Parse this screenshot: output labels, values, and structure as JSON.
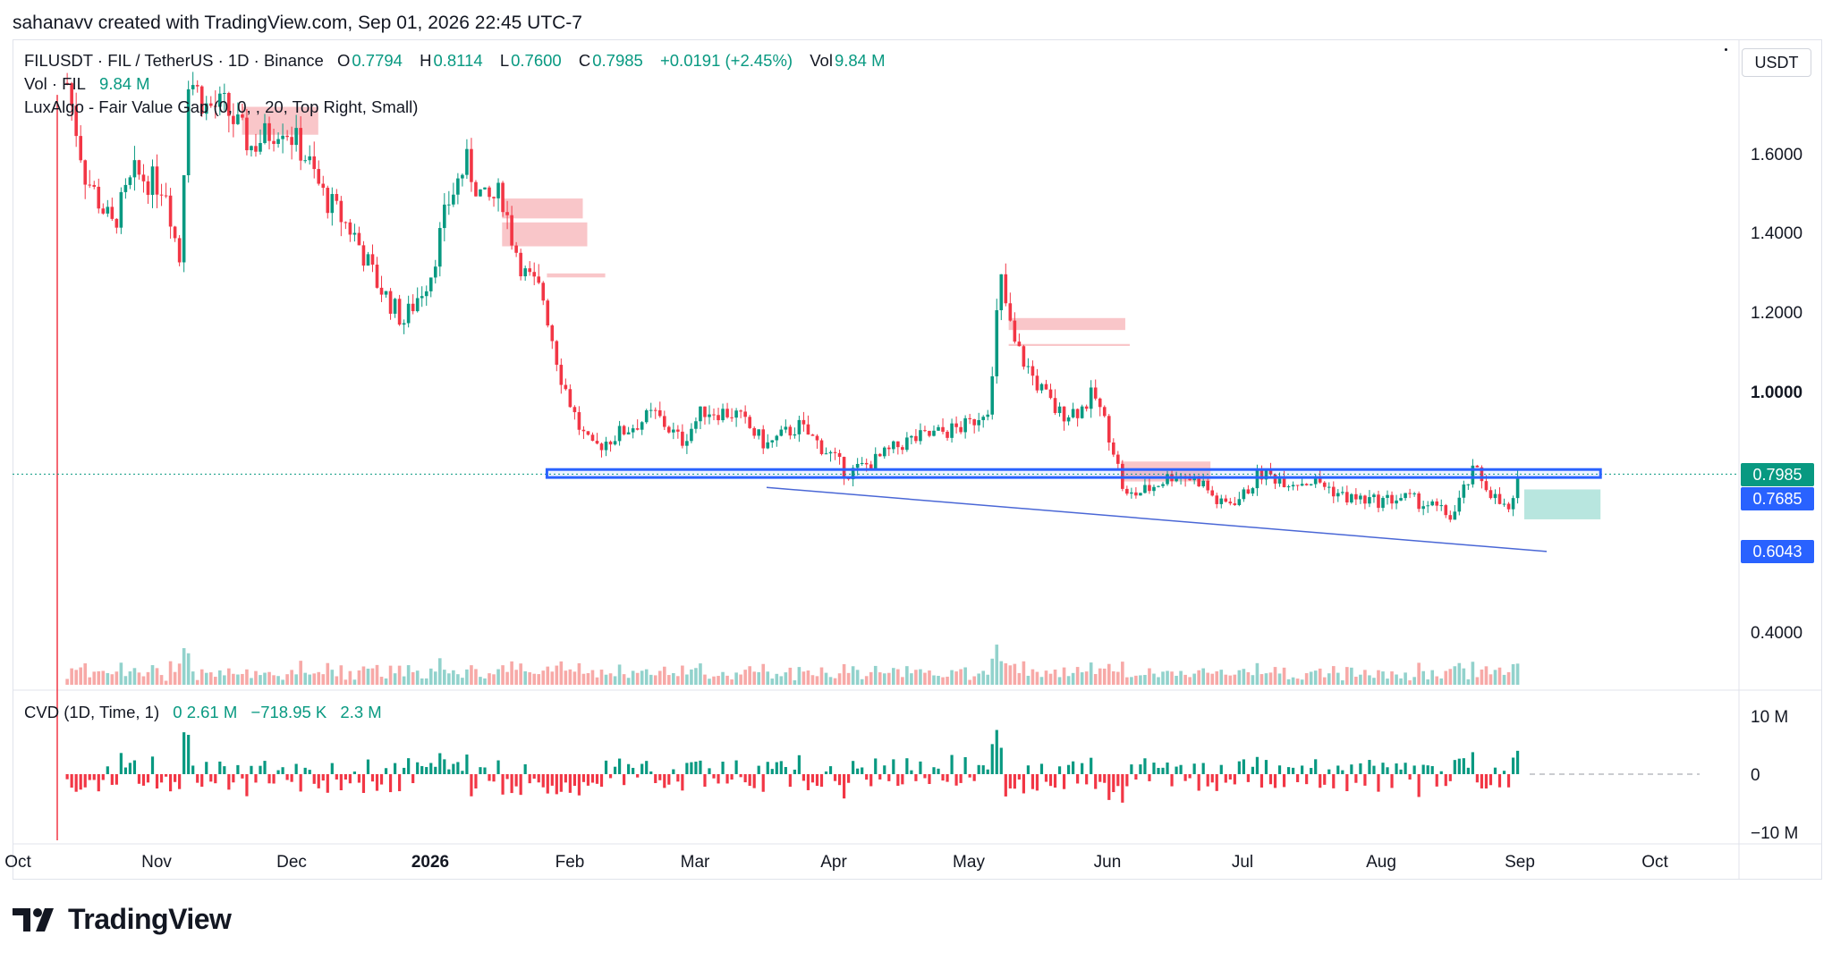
{
  "header": {
    "created_by": "sahanavv created with TradingView.com, Sep 01, 2026 22:45 UTC-7"
  },
  "legend": {
    "symbol": "FILUSDT · FIL / TetherUS · 1D · Binance",
    "open_k": "O",
    "open": "0.7794",
    "high_k": "H",
    "high": "0.8114",
    "low_k": "L",
    "low": "0.7600",
    "close_k": "C",
    "close": "0.7985",
    "change": "+0.0191 (+2.45%)",
    "vol_k": "Vol",
    "vol": "9.84 M",
    "volume_label": "Vol · FIL",
    "volume_value": "9.84 M",
    "indicator": "LuxAlgo - Fair Value Gap (0, 0, , 20, Top Right, Small)",
    "cvd_label": "CVD (1D, Time, 1)",
    "cvd_open": "0",
    "cvd_values": [
      "2.61 M",
      "−718.95 K",
      "2.3 M"
    ]
  },
  "currency_button": "USDT",
  "price_tags": {
    "last": "0.7985",
    "support": "0.7685",
    "trendline": "0.6043"
  },
  "colors": {
    "up": "#089981",
    "down": "#f23645",
    "up_vol": "#92d2cc",
    "down_vol": "#f7a9a7",
    "support_line": "#2962ff",
    "trend_line": "#4a67d6",
    "fvg_bear": "#f8c0c3",
    "fvg_bull": "#b8e6df",
    "last_tag": "#089981",
    "blue_tag": "#2962ff"
  },
  "chart_data": {
    "type": "candlestick",
    "symbol": "FILUSDT",
    "timeframe": "1D",
    "y_axis": {
      "ticks": [
        "1.6000",
        "1.4000",
        "1.2000",
        "1.0000",
        "0.4000"
      ],
      "ylim": [
        0.3,
        1.75
      ]
    },
    "cvd_axis": {
      "ticks": [
        "10 M",
        "0",
        "−10 M"
      ]
    },
    "x_axis": {
      "ticks": [
        "Oct",
        "Nov",
        "Dec",
        "2026",
        "Feb",
        "Mar",
        "Apr",
        "May",
        "Jun",
        "Jul",
        "Aug",
        "Sep",
        "Oct"
      ]
    },
    "price_path": [
      [
        "2025-10-12",
        1.78
      ],
      [
        "2025-10-16",
        1.55
      ],
      [
        "2025-10-22",
        1.42
      ],
      [
        "2025-10-27",
        1.55
      ],
      [
        "2025-11-03",
        1.52
      ],
      [
        "2025-11-06",
        1.33
      ],
      [
        "2025-11-08",
        1.8
      ],
      [
        "2025-11-12",
        1.72
      ],
      [
        "2025-11-16",
        1.72
      ],
      [
        "2025-11-22",
        1.62
      ],
      [
        "2025-11-29",
        1.68
      ],
      [
        "2025-12-04",
        1.6
      ],
      [
        "2025-12-08",
        1.5
      ],
      [
        "2025-12-15",
        1.4
      ],
      [
        "2025-12-20",
        1.28
      ],
      [
        "2025-12-26",
        1.18
      ],
      [
        "2026-01-01",
        1.3
      ],
      [
        "2026-01-05",
        1.48
      ],
      [
        "2026-01-09",
        1.58
      ],
      [
        "2026-01-13",
        1.48
      ],
      [
        "2026-01-17",
        1.5
      ],
      [
        "2026-01-19",
        1.4
      ],
      [
        "2026-01-22",
        1.3
      ],
      [
        "2026-01-26",
        1.25
      ],
      [
        "2026-01-30",
        1.05
      ],
      [
        "2026-02-03",
        0.92
      ],
      [
        "2026-02-06",
        0.86
      ],
      [
        "2026-02-12",
        0.9
      ],
      [
        "2026-02-20",
        0.95
      ],
      [
        "2026-02-26",
        0.88
      ],
      [
        "2026-03-03",
        0.96
      ],
      [
        "2026-03-10",
        0.95
      ],
      [
        "2026-03-17",
        0.87
      ],
      [
        "2026-03-24",
        0.92
      ],
      [
        "2026-03-31",
        0.85
      ],
      [
        "2026-04-04",
        0.8
      ],
      [
        "2026-04-10",
        0.83
      ],
      [
        "2026-04-17",
        0.88
      ],
      [
        "2026-04-24",
        0.9
      ],
      [
        "2026-05-01",
        0.92
      ],
      [
        "2026-05-06",
        0.98
      ],
      [
        "2026-05-08",
        1.3
      ],
      [
        "2026-05-11",
        1.13
      ],
      [
        "2026-05-16",
        1.03
      ],
      [
        "2026-05-21",
        0.95
      ],
      [
        "2026-05-26",
        0.96
      ],
      [
        "2026-05-29",
        1.0
      ],
      [
        "2026-06-02",
        0.88
      ],
      [
        "2026-06-05",
        0.74
      ],
      [
        "2026-06-10",
        0.76
      ],
      [
        "2026-06-16",
        0.8
      ],
      [
        "2026-06-22",
        0.78
      ],
      [
        "2026-06-26",
        0.72
      ],
      [
        "2026-07-01",
        0.74
      ],
      [
        "2026-07-05",
        0.8
      ],
      [
        "2026-07-12",
        0.78
      ],
      [
        "2026-07-18",
        0.78
      ],
      [
        "2026-07-24",
        0.74
      ],
      [
        "2026-07-31",
        0.73
      ],
      [
        "2026-08-06",
        0.74
      ],
      [
        "2026-08-12",
        0.72
      ],
      [
        "2026-08-17",
        0.69
      ],
      [
        "2026-08-20",
        0.77
      ],
      [
        "2026-08-22",
        0.81
      ],
      [
        "2026-08-27",
        0.73
      ],
      [
        "2026-08-30",
        0.7
      ],
      [
        "2026-09-01",
        0.7985
      ]
    ]
  }
}
